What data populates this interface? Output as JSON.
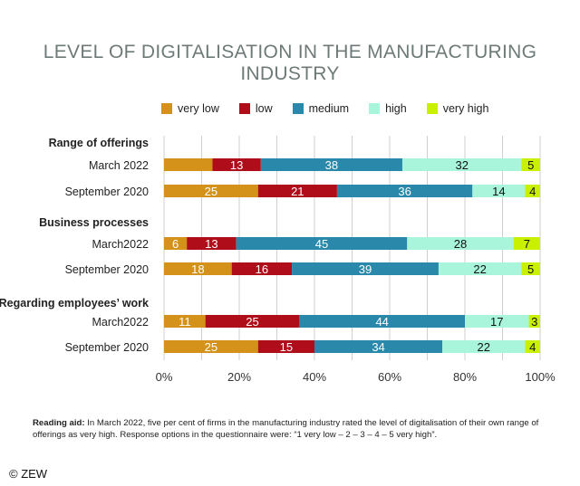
{
  "chart_data": {
    "type": "bar",
    "orientation": "horizontal",
    "stacked": "percent",
    "title": "LEVEL OF DIGITALISATION IN THE MANUFACTURING INDUSTRY",
    "legend": [
      "very low",
      "low",
      "medium",
      "high",
      "very high"
    ],
    "legend_placement": "top",
    "colors": [
      "#d4921a",
      "#b00d1a",
      "#2a89ab",
      "#a8f5dc",
      "#c8f000"
    ],
    "label_colors": [
      "#ffffff",
      "#ffffff",
      "#ffffff",
      "#111111",
      "#111111"
    ],
    "xlim": [
      0,
      100
    ],
    "xticks": [
      "0%",
      "20%",
      "40%",
      "60%",
      "80%",
      "100%"
    ],
    "grid": "vertical every 10%",
    "groups": [
      {
        "name": "Range of offerings",
        "rows": [
          {
            "label": "March 2022",
            "values": [
              13,
              13,
              38,
              32,
              5
            ],
            "hide_label": [
              true,
              false,
              false,
              false,
              false
            ]
          },
          {
            "label": "September 2020",
            "values": [
              25,
              21,
              36,
              14,
              4
            ]
          }
        ]
      },
      {
        "name": "Business processes",
        "rows": [
          {
            "label": "March2022",
            "values": [
              6,
              13,
              45,
              28,
              7
            ]
          },
          {
            "label": "September 2020",
            "values": [
              18,
              16,
              39,
              22,
              5
            ]
          }
        ]
      },
      {
        "name": "Regarding employees’ work",
        "rows": [
          {
            "label": "March2022",
            "values": [
              11,
              25,
              44,
              17,
              3
            ]
          },
          {
            "label": "September 2020",
            "values": [
              25,
              15,
              34,
              22,
              4
            ]
          }
        ]
      }
    ]
  },
  "note": {
    "lead": "Reading aid:",
    "text": " In March 2022, five per cent of firms in the manufacturing industry rated the level of digitalisation of their own range of offerings as very high. Response options in the questionnaire were: “1 very low – 2 – 3 – 4 – 5 very high”."
  },
  "copyright": "© ZEW"
}
